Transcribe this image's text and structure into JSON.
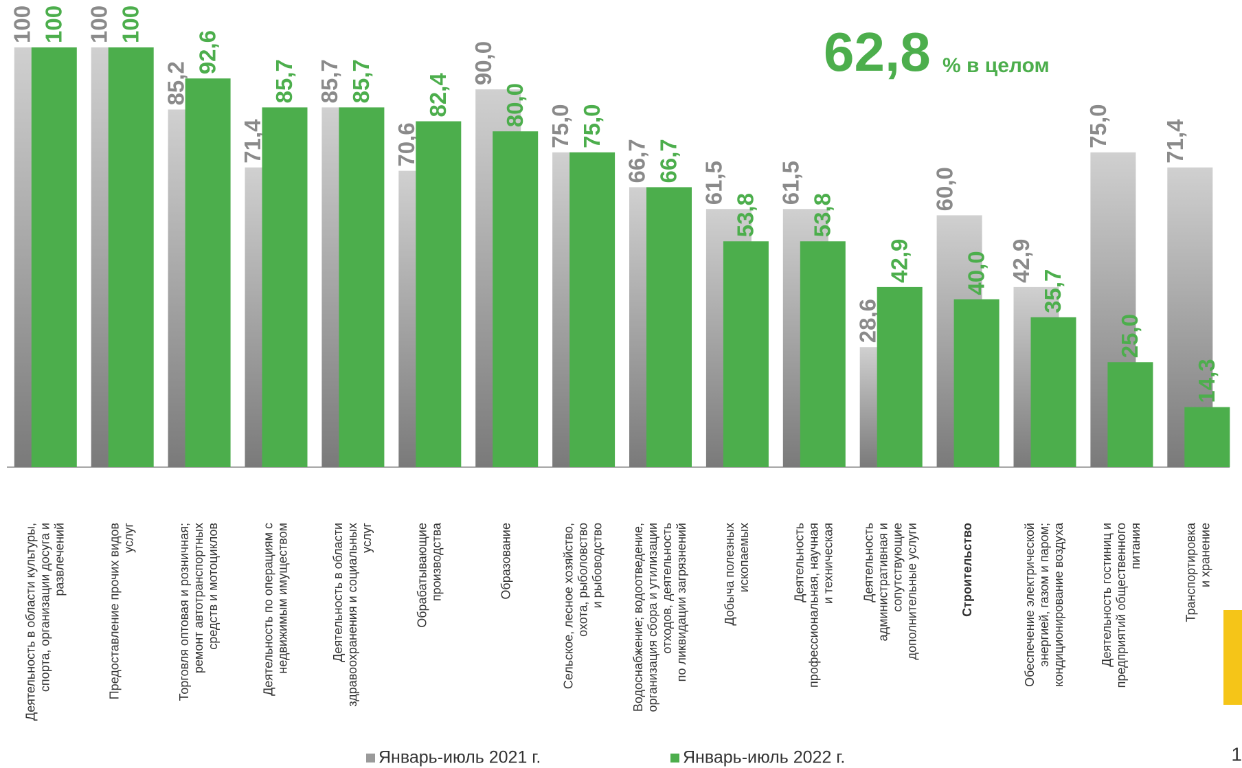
{
  "chart_data": {
    "type": "bar",
    "annotation": {
      "value": "62,8",
      "text": "% в целом"
    },
    "categories": [
      "Деятельность в области культуры,\nспорта, организации досуга и\nразвлечений",
      "Предоставление прочих видов\nуслуг",
      "Торговля оптовая и розничная;\nремонт автотранспортных\nсредств и мотоциклов",
      "Деятельность по операциям с\nнедвижимым имуществом",
      "Деятельность в области\nздравоохранения и социальных\nуслуг",
      "Обрабатывающие\nпроизводства",
      "Образование",
      "Сельское, лесное хозяйство,\nохота, рыболовство\nи рыбоводство",
      "Водоснабжение; водоотведение,\nорганизация сбора и утилизации\nотходов, деятельность\nпо ликвидации загрязнений",
      "Добыча полезных\nископаемых",
      "Деятельность\nпрофессиональная, научная\nи техническая",
      "Деятельность\nадминистративная и\nсопутствующие\nдополнительные услуги",
      "Строительство",
      "Обеспечение электрической\nэнергией, газом и паром;\nкондиционирование воздуха",
      "Деятельность гостиниц и\nпредприятий общественного\nпитания",
      "Транспортировка\nи хранение"
    ],
    "series": [
      {
        "name": "Январь-июль 2021 г.",
        "color": "#9a9a9a",
        "values": [
          100,
          100,
          85.2,
          71.4,
          85.7,
          70.6,
          90.0,
          75.0,
          66.7,
          61.5,
          61.5,
          28.6,
          60.0,
          42.9,
          75.0,
          71.4
        ],
        "value_labels": [
          "100",
          "100",
          "85,2",
          "71,4",
          "85,7",
          "70,6",
          "90,0",
          "75,0",
          "66,7",
          "61,5",
          "61,5",
          "28,6",
          "60,0",
          "42,9",
          "75,0",
          "71,4"
        ]
      },
      {
        "name": "Январь-июль 2022 г.",
        "color": "#4cae4c",
        "values": [
          100,
          100,
          92.6,
          85.7,
          85.7,
          82.4,
          80.0,
          75.0,
          66.7,
          53.8,
          53.8,
          42.9,
          40.0,
          35.7,
          25.0,
          14.3
        ],
        "value_labels": [
          "100",
          "100",
          "92,6",
          "85,7",
          "85,7",
          "82,4",
          "80,0",
          "75,0",
          "66,7",
          "53,8",
          "53,8",
          "42,9",
          "40,0",
          "35,7",
          "25,0",
          "14,3"
        ]
      }
    ],
    "ylim": [
      0,
      100
    ]
  },
  "page_number": "1"
}
